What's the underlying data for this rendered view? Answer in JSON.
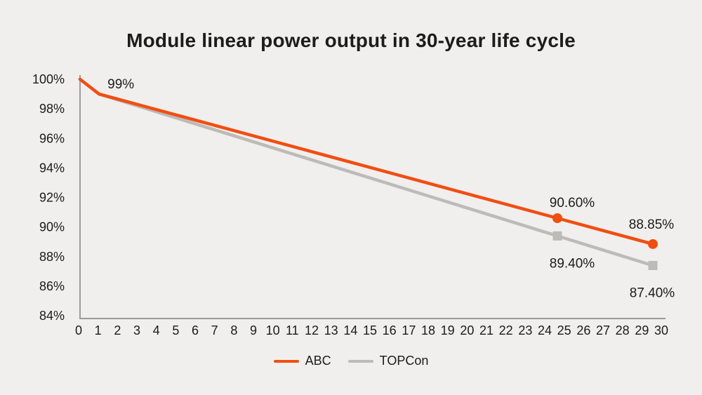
{
  "title": "Module linear power output in 30-year life cycle",
  "colors": {
    "background": "#f0efee",
    "text": "#1b1b1b",
    "axis": "#9b9b9b",
    "abc_orange": "#f14e11",
    "topcon_gray": "#bdbab7"
  },
  "chart_data": {
    "type": "line",
    "title": "Module linear power output in 30-year life cycle",
    "xlabel": "",
    "ylabel": "",
    "grid": false,
    "legend_position": "bottom",
    "x_axis": {
      "min": 0,
      "max": 30,
      "tick_step": 1,
      "tick_labels": [
        "0",
        "1",
        "2",
        "3",
        "4",
        "5",
        "6",
        "7",
        "8",
        "9",
        "10",
        "11",
        "12",
        "13",
        "14",
        "15",
        "16",
        "17",
        "18",
        "19",
        "20",
        "21",
        "22",
        "23",
        "24",
        "25",
        "26",
        "27",
        "28",
        "29",
        "30"
      ]
    },
    "y_axis": {
      "min": 84,
      "max": 100,
      "tick_step": 2,
      "tick_labels": [
        "100%",
        "98%",
        "96%",
        "94%",
        "92%",
        "90%",
        "88%",
        "86%",
        "84%"
      ]
    },
    "series": [
      {
        "name": "ABC",
        "color": "#f14e11",
        "marker": "circle",
        "points": [
          {
            "year": 0,
            "value": 100
          },
          {
            "year": 1,
            "value": 99,
            "label": "99%",
            "label_dx": 31,
            "label_dy": -8
          },
          {
            "year": 25,
            "value": 90.6,
            "label": "90.60%",
            "marker": true,
            "label_dx": 21,
            "label_dy": -16
          },
          {
            "year": 30,
            "value": 88.85,
            "label": "88.85%",
            "marker": true,
            "label_dx": -2,
            "label_dy": -22
          }
        ]
      },
      {
        "name": "TOPCon",
        "color": "#bdbab7",
        "marker": "square",
        "points": [
          {
            "year": 0,
            "value": 100
          },
          {
            "year": 1,
            "value": 99
          },
          {
            "year": 25,
            "value": 89.4,
            "label": "89.40%",
            "marker": true,
            "label_dx": 21,
            "label_dy": 45
          },
          {
            "year": 30,
            "value": 87.4,
            "label": "87.40%",
            "marker": true,
            "label_dx": -1,
            "label_dy": 45
          }
        ]
      }
    ]
  },
  "legend": {
    "items": [
      {
        "label": "ABC",
        "color": "#f14e11"
      },
      {
        "label": "TOPCon",
        "color": "#bdbab7"
      }
    ]
  }
}
